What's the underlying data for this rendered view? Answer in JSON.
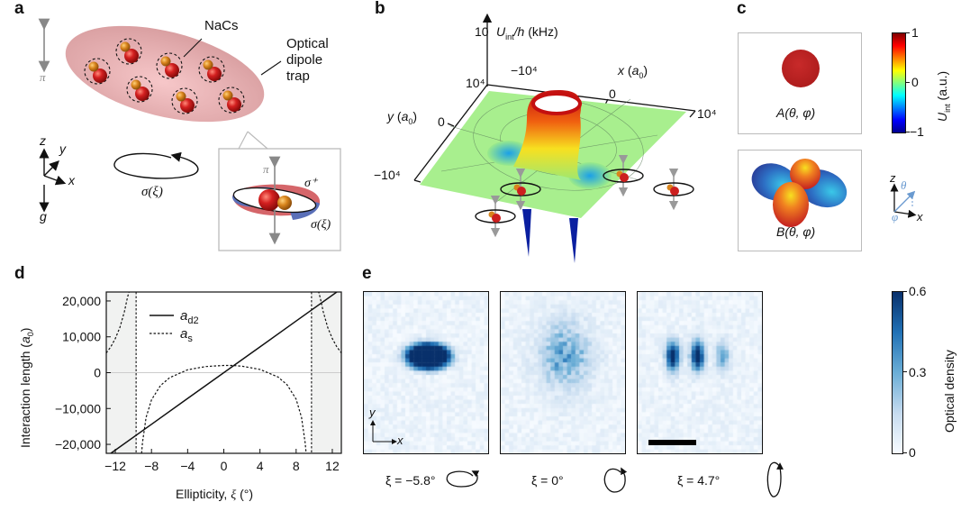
{
  "panels": {
    "a": {
      "label": "a",
      "molecule_label": "NaCs",
      "trap_label_lines": [
        "Optical",
        "dipole",
        "trap"
      ],
      "pi_label": "π",
      "sigma_xi_label": "σ(ξ)",
      "sigma_plus_label": "σ⁺",
      "axes": {
        "z": "z",
        "y": "y",
        "x": "x",
        "g": "g"
      },
      "molecule_count": 7,
      "colors": {
        "trap": "#e8a7a7",
        "cs_atom": "#cc1f1f",
        "na_atom": "#d8841c",
        "sigma_red": "#d0555a",
        "sigma_blue": "#5a6fb8"
      }
    },
    "b": {
      "label": "b",
      "z_axis_label": "U_int/h (kHz)",
      "z_tick": "10",
      "x_axis_label": "x (a₀)",
      "y_axis_label": "y (a₀)",
      "x_ticks": [
        "−10⁴",
        "0",
        "10⁴"
      ],
      "y_ticks": [
        "10⁴",
        "0",
        "−10⁴"
      ]
    },
    "c": {
      "label": "c",
      "box_a_label": "A(θ, φ)",
      "box_b_label": "B(θ, φ)",
      "colorbar": {
        "label": "U_int (a.u.)",
        "ticks": [
          "1",
          "0",
          "−1"
        ],
        "range": [
          -1,
          1
        ],
        "colormap": "jet"
      },
      "axes": {
        "z": "z",
        "theta": "θ",
        "phi": "φ",
        "x": "x"
      }
    },
    "d": {
      "label": "d"
    },
    "e": {
      "label": "e",
      "images": [
        {
          "xi_label": "ξ = −5.8°",
          "ellipse": "horizontal",
          "pattern": "single-dense-lobe"
        },
        {
          "xi_label": "ξ = 0°",
          "ellipse": "circle",
          "pattern": "diffuse-cloud"
        },
        {
          "xi_label": "ξ = 4.7°",
          "ellipse": "vertical",
          "pattern": "three-fringes"
        }
      ],
      "axes": {
        "y": "y",
        "x": "x"
      },
      "colorbar": {
        "label": "Optical density",
        "ticks": [
          "0.6",
          "0.3",
          "0"
        ],
        "range": [
          0,
          0.6
        ],
        "color_low": "#f7fbff",
        "color_high": "#08306b"
      }
    }
  },
  "chart_data": {
    "type": "line",
    "title": "",
    "xlabel": "Ellipticity, ξ (°)",
    "ylabel": "Interaction length (a₀)",
    "xlim": [
      -13,
      13
    ],
    "ylim": [
      -22500,
      22500
    ],
    "x_ticks": [
      -12,
      -8,
      -4,
      0,
      4,
      8,
      12
    ],
    "x_tick_labels": [
      "−12",
      "−8",
      "−4",
      "0",
      "4",
      "8",
      "12"
    ],
    "y_ticks": [
      20000,
      10000,
      0,
      -10000,
      -20000
    ],
    "y_tick_labels": [
      "20,000",
      "10,000",
      "0",
      "−10,000",
      "−20,000"
    ],
    "zero_line": true,
    "shaded_regions": [
      [
        -13,
        -9.7
      ],
      [
        9.7,
        13
      ]
    ],
    "vertical_dashed_lines": [
      -9.7,
      9.7
    ],
    "legend": {
      "position": "top-left",
      "entries": [
        "a_d2",
        "a_s"
      ]
    },
    "series": [
      {
        "name": "a_d2",
        "style": "solid",
        "x": [
          -13,
          -8,
          -4,
          0,
          4,
          8,
          13
        ],
        "y": [
          -23400,
          -14400,
          -7200,
          0,
          7200,
          14400,
          23400
        ]
      },
      {
        "name": "a_s",
        "style": "dashed",
        "x": [
          -9.1,
          -9.0,
          -8.6,
          -8.0,
          -7.0,
          -6.0,
          -4.0,
          -2.0,
          0.0,
          1.0,
          2.0,
          4.0,
          6.0,
          7.0,
          8.0,
          8.6,
          9.0,
          9.1
        ],
        "y": [
          -22500,
          -19500,
          -12500,
          -7600,
          -3600,
          -1400,
          800,
          1700,
          2000,
          2000,
          1800,
          900,
          -1200,
          -3400,
          -7400,
          -12500,
          -19500,
          -22500
        ]
      },
      {
        "name": "a_s (outer left)",
        "style": "dashed",
        "x": [
          -13.0,
          -12.5,
          -12.0,
          -11.5,
          -11.0,
          -10.7,
          -10.5,
          -10.4
        ],
        "y": [
          5500,
          7200,
          9500,
          12600,
          17000,
          20500,
          22500,
          22500
        ]
      },
      {
        "name": "a_s (outer right)",
        "style": "dashed",
        "x": [
          10.4,
          10.5,
          10.7,
          11.0,
          11.5,
          12.0,
          12.5,
          13.0
        ],
        "y": [
          22500,
          22500,
          20500,
          17000,
          12600,
          9500,
          7200,
          5500
        ]
      }
    ]
  }
}
